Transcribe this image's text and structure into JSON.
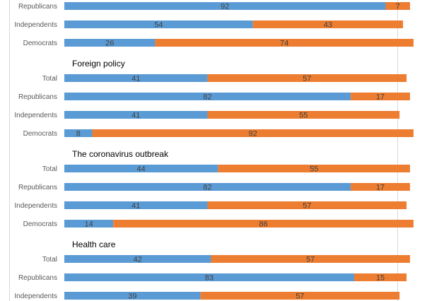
{
  "chart_data": {
    "type": "bar",
    "orientation": "horizontal",
    "stacked": true,
    "grid": false,
    "legend": "none",
    "colors": [
      "#5B9BD5",
      "#ED7D31"
    ],
    "xlim": [
      0,
      100
    ],
    "sections": [
      {
        "title": "",
        "rows": [
          {
            "label": "Republicans",
            "values": [
              92,
              7
            ]
          },
          {
            "label": "Independents",
            "values": [
              54,
              43
            ]
          },
          {
            "label": "Democrats",
            "values": [
              26,
              74
            ]
          }
        ]
      },
      {
        "title": "Foreign policy",
        "rows": [
          {
            "label": "Total",
            "values": [
              41,
              57
            ]
          },
          {
            "label": "Republicans",
            "values": [
              82,
              17
            ]
          },
          {
            "label": "Independents",
            "values": [
              41,
              55
            ]
          },
          {
            "label": "Democrats",
            "values": [
              8,
              92
            ]
          }
        ]
      },
      {
        "title": "The coronavirus outbreak",
        "rows": [
          {
            "label": "Total",
            "values": [
              44,
              55
            ]
          },
          {
            "label": "Republicans",
            "values": [
              82,
              17
            ]
          },
          {
            "label": "Independents",
            "values": [
              41,
              57
            ]
          },
          {
            "label": "Democrats",
            "values": [
              14,
              86
            ]
          }
        ]
      },
      {
        "title": "Health care",
        "rows": [
          {
            "label": "Total",
            "values": [
              42,
              57
            ]
          },
          {
            "label": "Republicans",
            "values": [
              83,
              15
            ]
          },
          {
            "label": "Independents",
            "values": [
              39,
              57
            ]
          }
        ]
      }
    ]
  }
}
